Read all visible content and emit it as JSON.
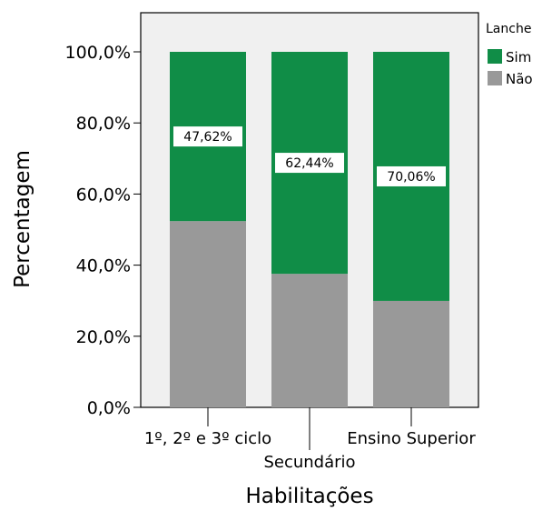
{
  "chart_data": {
    "type": "bar",
    "stacked": true,
    "percent_stacked": true,
    "title": "",
    "xlabel": "Habilitações",
    "ylabel": "Percentagem",
    "categories": [
      "1º, 2º e 3º ciclo",
      "Secundário",
      "Ensino Superior"
    ],
    "series": [
      {
        "name": "Não",
        "values": [
          52.38,
          37.56,
          29.94
        ],
        "color": "#999999"
      },
      {
        "name": "Sim",
        "values": [
          47.62,
          62.44,
          70.06
        ],
        "color": "#108d47"
      }
    ],
    "data_labels": [
      "47,62%",
      "62,44%",
      "70,06%"
    ],
    "y_ticks": [
      "0,0%",
      "20,0%",
      "40,0%",
      "60,0%",
      "80,0%",
      "100,0%"
    ],
    "ylim": [
      0,
      100
    ],
    "grid": false,
    "plot_background": "#f0f0f0",
    "legend": {
      "title": "Lanche",
      "position": "top-right",
      "entries": [
        "Sim",
        "Não"
      ]
    }
  }
}
